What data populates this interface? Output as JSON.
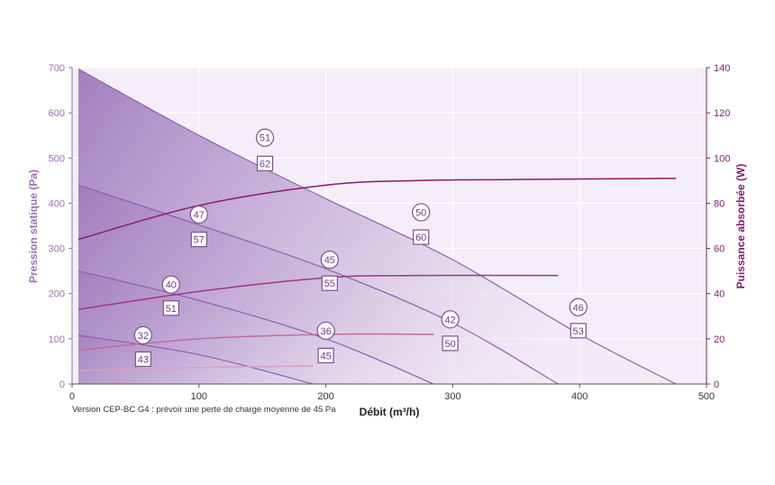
{
  "chart_data": {
    "type": "line",
    "title": "",
    "xlabel": "Débit (m³/h)",
    "ylabel_left": "Pression statique (Pa)",
    "ylabel_right": "Puissance absorbée (W)",
    "xlim": [
      0,
      500
    ],
    "ylim_left": [
      0,
      700
    ],
    "ylim_right": [
      0,
      140
    ],
    "x_ticks": [
      "0",
      "100",
      "200",
      "300",
      "400",
      "500"
    ],
    "y_left_ticks": [
      "0",
      "100",
      "200",
      "300",
      "400",
      "500",
      "600",
      "700"
    ],
    "y_right_ticks": [
      "0",
      "20",
      "40",
      "60",
      "80",
      "100",
      "120",
      "140"
    ],
    "grid": true,
    "pressure_curves": [
      {
        "x": [
          5,
          100,
          200,
          300,
          400,
          476
        ],
        "y": [
          697,
          550,
          410,
          275,
          110,
          0
        ]
      },
      {
        "x": [
          5,
          100,
          200,
          300,
          383
        ],
        "y": [
          440,
          352,
          255,
          135,
          0
        ]
      },
      {
        "x": [
          5,
          100,
          200,
          285
        ],
        "y": [
          250,
          185,
          100,
          0
        ]
      },
      {
        "x": [
          5,
          100,
          190
        ],
        "y": [
          108,
          65,
          0
        ]
      }
    ],
    "power_curves": [
      {
        "x": [
          5,
          100,
          200,
          270,
          350,
          476
        ],
        "y": [
          64,
          79,
          88,
          90,
          90.5,
          91
        ]
      },
      {
        "x": [
          5,
          100,
          200,
          270,
          383
        ],
        "y": [
          33,
          41,
          47,
          48,
          48
        ]
      },
      {
        "x": [
          5,
          100,
          200,
          285
        ],
        "y": [
          15,
          20,
          22,
          22
        ]
      },
      {
        "x": [
          5,
          100,
          190
        ],
        "y": [
          6,
          7.3,
          8
        ]
      }
    ],
    "annotations": [
      {
        "circle": "51",
        "square": "62",
        "x": 152,
        "y_circle": 545,
        "y_square": 488
      },
      {
        "circle": "47",
        "square": "57",
        "x": 100,
        "y_circle": 375,
        "y_square": 320
      },
      {
        "circle": "50",
        "square": "60",
        "x": 275,
        "y_circle": 380,
        "y_square": 325
      },
      {
        "circle": "40",
        "square": "51",
        "x": 78,
        "y_circle": 220,
        "y_square": 168
      },
      {
        "circle": "45",
        "square": "55",
        "x": 203,
        "y_circle": 275,
        "y_square": 223
      },
      {
        "circle": "42",
        "square": "50",
        "x": 298,
        "y_circle": 143,
        "y_square": 90
      },
      {
        "circle": "32",
        "square": "43",
        "x": 56,
        "y_circle": 108,
        "y_square": 55
      },
      {
        "circle": "36",
        "square": "45",
        "x": 200,
        "y_circle": 118,
        "y_square": 63
      },
      {
        "circle": "46",
        "square": "53",
        "x": 399,
        "y_circle": 170,
        "y_square": 118
      }
    ]
  },
  "footnote": "Version CEP-BC G4 : prévoir une perte de charge moyenne de 45 Pa",
  "colors": {
    "axis_left": "#9b6fb8",
    "axis_right": "#7b1e6f",
    "area_dark": "#9e78bb",
    "area_light": "#f5eff8",
    "plot_bg": "#f3eef7",
    "power_line": "#8c1a6e"
  }
}
